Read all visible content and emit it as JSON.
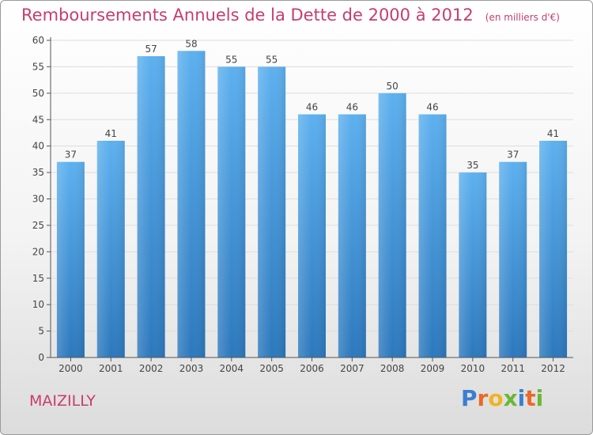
{
  "page": {
    "title": "Remboursements Annuels de la Dette de 2000 à 2012",
    "subtitle": "(en milliers d'€)",
    "town": "MAIZILLY",
    "logo_letters": [
      "P",
      "r",
      "o",
      "x",
      "i",
      "t",
      "i"
    ],
    "logo_colors": [
      "#3a7fd0",
      "#e8692a",
      "#f0b323",
      "#69b834",
      "#3a7fd0",
      "#e8692a",
      "#69b834"
    ]
  },
  "chart_data": {
    "type": "bar",
    "categories": [
      "2000",
      "2001",
      "2002",
      "2003",
      "2004",
      "2005",
      "2006",
      "2007",
      "2008",
      "2009",
      "2010",
      "2011",
      "2012"
    ],
    "values": [
      37,
      41,
      57,
      58,
      55,
      55,
      46,
      46,
      50,
      46,
      35,
      37,
      41
    ],
    "title": "Remboursements Annuels de la Dette de 2000 à 2012",
    "subtitle": "(en milliers d'€)",
    "ylim": [
      0,
      60
    ],
    "yticks": [
      0,
      5,
      10,
      15,
      20,
      25,
      30,
      35,
      40,
      45,
      50,
      55,
      60
    ],
    "grid": true,
    "bar_color": "#3b8fd6",
    "bar_color_light": "#5aaef0"
  }
}
